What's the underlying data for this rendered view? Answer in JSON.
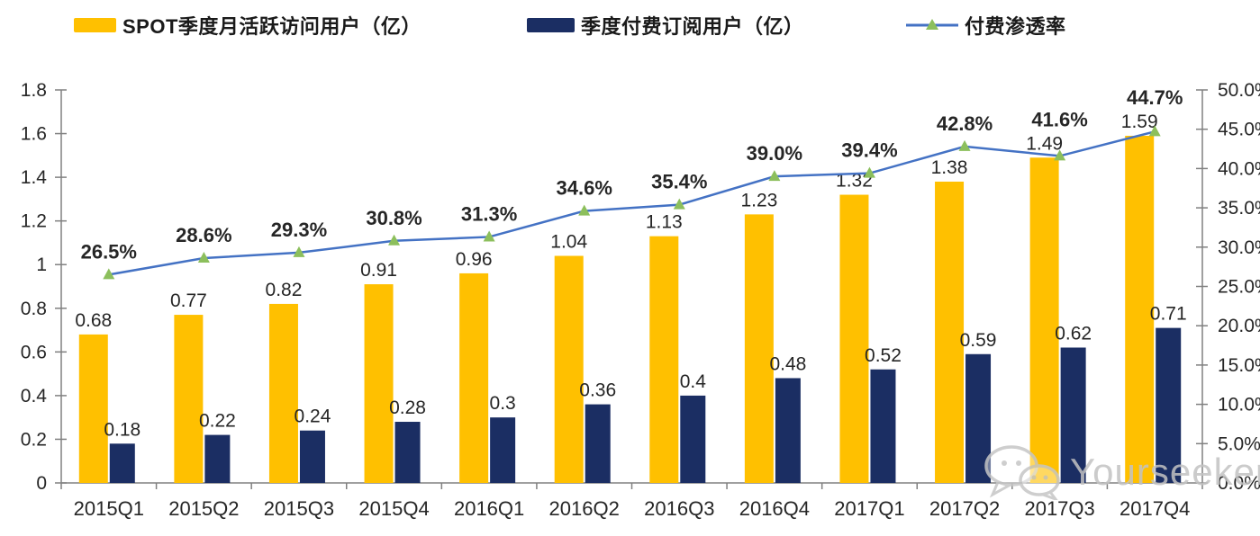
{
  "page": {
    "background": "#FFFFFF"
  },
  "legend": {
    "items": [
      {
        "label": "SPOT季度月活跃访问用户（亿）",
        "type": "bar",
        "swatch_color": "#FFC000"
      },
      {
        "label": "季度付费订阅用户（亿）",
        "type": "bar",
        "swatch_color": "#1B2E63"
      },
      {
        "label": "付费渗透率",
        "type": "line",
        "line_color": "#4472C4",
        "marker_color": "#8CBF5C"
      }
    ]
  },
  "watermark": {
    "text": "Yourseeker",
    "icon": "wechat-logo",
    "color": "#C3C3C3"
  },
  "chart_data": {
    "type": "bar",
    "subtype": "combo-bar-line",
    "title": "",
    "categories": [
      "2015Q1",
      "2015Q2",
      "2015Q3",
      "2015Q4",
      "2016Q1",
      "2016Q2",
      "2016Q3",
      "2016Q4",
      "2017Q1",
      "2017Q2",
      "2017Q3",
      "2017Q4"
    ],
    "series": [
      {
        "name": "SPOT季度月活跃访问用户（亿）",
        "type": "bar",
        "axis": "left",
        "color": "#FFC000",
        "values": [
          0.68,
          0.77,
          0.82,
          0.91,
          0.96,
          1.04,
          1.13,
          1.23,
          1.32,
          1.38,
          1.49,
          1.59
        ],
        "labels": [
          "0.68",
          "0.77",
          "0.82",
          "0.91",
          "0.96",
          "1.04",
          "1.13",
          "1.23",
          "1.32",
          "1.38",
          "1.49",
          "1.59"
        ]
      },
      {
        "name": "季度付费订阅用户（亿）",
        "type": "bar",
        "axis": "left",
        "color": "#1B2E63",
        "values": [
          0.18,
          0.22,
          0.24,
          0.28,
          0.3,
          0.36,
          0.4,
          0.48,
          0.52,
          0.59,
          0.62,
          0.71
        ],
        "labels": [
          "0.18",
          "0.22",
          "0.24",
          "0.28",
          "0.3",
          "0.36",
          "0.4",
          "0.48",
          "0.52",
          "0.59",
          "0.62",
          "0.71"
        ]
      },
      {
        "name": "付费渗透率",
        "type": "line",
        "axis": "right",
        "color": "#4472C4",
        "marker": "triangle",
        "marker_color": "#8CBF5C",
        "values": [
          26.5,
          28.6,
          29.3,
          30.8,
          31.3,
          34.6,
          35.4,
          39.0,
          39.4,
          42.8,
          41.6,
          44.7
        ],
        "labels": [
          "26.5%",
          "28.6%",
          "29.3%",
          "30.8%",
          "31.3%",
          "34.6%",
          "35.4%",
          "39.0%",
          "39.4%",
          "42.8%",
          "41.6%",
          "44.7%"
        ]
      }
    ],
    "left_axis": {
      "min": 0,
      "max": 1.8,
      "step": 0.2,
      "labels": [
        "0",
        "0.2",
        "0.4",
        "0.6",
        "0.8",
        "1",
        "1.2",
        "1.4",
        "1.6",
        "1.8"
      ]
    },
    "right_axis": {
      "min": 0,
      "max": 50,
      "step": 5,
      "labels": [
        "0.0%",
        "5.0%",
        "10.0%",
        "15.0%",
        "20.0%",
        "25.0%",
        "30.0%",
        "35.0%",
        "40.0%",
        "45.0%",
        "50.0%"
      ]
    },
    "grid": false,
    "legend_position": "top",
    "style": {
      "axis_color": "#808080",
      "text_color": "#262626"
    }
  }
}
